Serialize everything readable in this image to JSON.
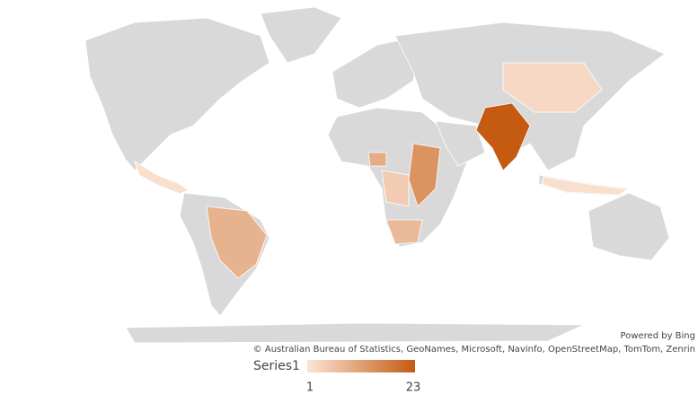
{
  "map": {
    "attribution": {
      "powered_by": "Powered by Bing",
      "copyright": "© Australian Bureau of Statistics, GeoNames, Microsoft, Navinfo, OpenStreetMap, TomTom, Zenrin"
    },
    "legend": {
      "title": "Series1",
      "min": 1,
      "max": 23,
      "min_color": "#fbe5d6",
      "max_color": "#c55a11"
    },
    "base_color": "#d9d9d9",
    "values": [
      23,
      3,
      14,
      8,
      10,
      5,
      9,
      2,
      2
    ]
  }
}
